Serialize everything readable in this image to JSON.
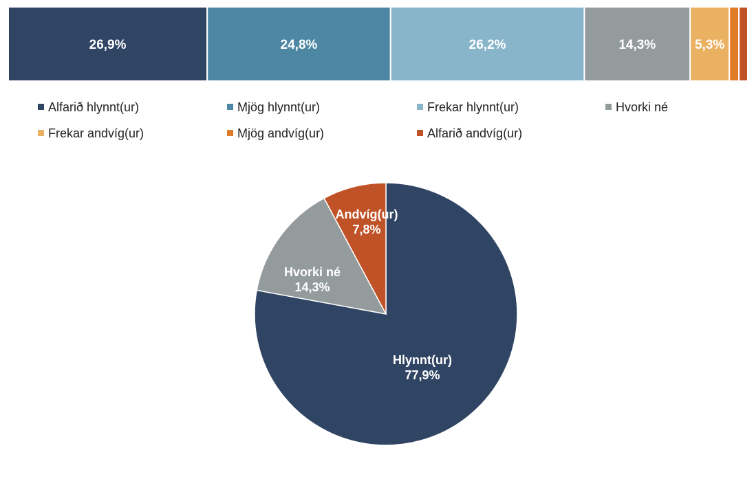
{
  "chart_data": [
    {
      "type": "bar",
      "orientation": "horizontal-stacked-100",
      "series": [
        {
          "name": "Alfarið hlynnt(ur)",
          "value": 26.9,
          "label": "26,9%",
          "color": "#304464"
        },
        {
          "name": "Mjög hlynnt(ur)",
          "value": 24.8,
          "label": "24,8%",
          "color": "#4E87A3"
        },
        {
          "name": "Frekar hlynnt(ur)",
          "value": 26.2,
          "label": "26,2%",
          "color": "#88B5CA"
        },
        {
          "name": "Hvorki né",
          "value": 14.3,
          "label": "14,3%",
          "color": "#949B9C"
        },
        {
          "name": "Frekar andvíg(ur)",
          "value": 5.3,
          "label": "5,3%",
          "color": "#EBB162"
        },
        {
          "name": "Mjög andvíg(ur)",
          "value": 1.3,
          "label": "",
          "color": "#E07B28"
        },
        {
          "name": "Alfarið andvíg(ur)",
          "value": 1.2,
          "label": "",
          "color": "#C05227"
        }
      ],
      "legend": "bottom"
    },
    {
      "type": "pie",
      "slices": [
        {
          "name": "Hlynnt(ur)",
          "value": 77.9,
          "label": "77,9%",
          "color": "#304464"
        },
        {
          "name": "Hvorki né",
          "value": 14.3,
          "label": "14,3%",
          "color": "#949B9C"
        },
        {
          "name": "Andvíg(ur)",
          "value": 7.8,
          "label": "7,8%",
          "color": "#C05227"
        }
      ]
    }
  ]
}
